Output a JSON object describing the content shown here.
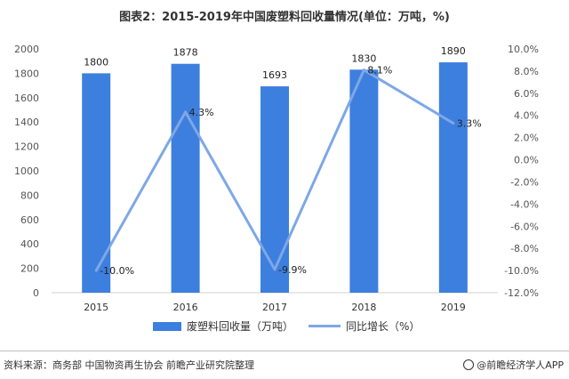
{
  "chart_data": {
    "type": "bar",
    "title": "图表2：2015-2019年中国废塑料回收量情况(单位：万吨，%)",
    "categories": [
      "2015",
      "2016",
      "2017",
      "2018",
      "2019"
    ],
    "series": [
      {
        "name": "废塑料回收量（万吨）",
        "type": "bar",
        "axis": "left",
        "values": [
          1800,
          1878,
          1693,
          1830,
          1890
        ],
        "labels": [
          "1800",
          "1878",
          "1693",
          "1830",
          "1890"
        ]
      },
      {
        "name": "同比增长（%）",
        "type": "line",
        "axis": "right",
        "values": [
          -10.0,
          4.3,
          -9.9,
          8.1,
          3.3
        ],
        "labels": [
          "-10.0%",
          "4.3%",
          "-9.9%",
          "8.1%",
          "3.3%"
        ]
      }
    ],
    "y_left": {
      "min": 0,
      "max": 2000,
      "step": 200,
      "ticks": [
        "0",
        "200",
        "400",
        "600",
        "800",
        "1000",
        "1200",
        "1400",
        "1600",
        "1800",
        "2000"
      ]
    },
    "y_right": {
      "min": -12,
      "max": 10,
      "step": 2,
      "ticks": [
        "-12.0%",
        "-10.0%",
        "-8.0%",
        "-6.0%",
        "-4.0%",
        "-2.0%",
        "0.0%",
        "2.0%",
        "4.0%",
        "6.0%",
        "8.0%",
        "10.0%"
      ]
    },
    "grid": false,
    "legend_position": "bottom",
    "colors": {
      "bar": "#3d7fde",
      "line": "#7ea7e6"
    }
  },
  "footer": {
    "source": "资料来源：商务部 中国物资再生协会 前瞻产业研究院整理",
    "brand": "@前瞻经济学人APP"
  }
}
